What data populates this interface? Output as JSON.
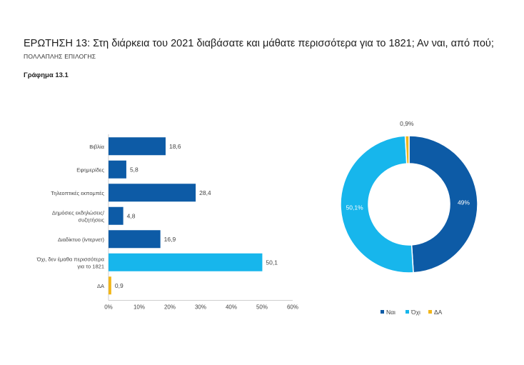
{
  "header": {
    "title": "ΕΡΩΤΗΣΗ 13: Στη διάρκεια του 2021 διαβάσατε και μάθατε περισσότερα για το 1821; Αν ναι, από πού;",
    "subtitle": "ΠΟΛΛΑΠΛΗΣ ΕΠΙΛΟΓΗΣ",
    "figure_label": "Γράφημα 13.1"
  },
  "colors": {
    "dark_blue": "#0d5ba6",
    "light_blue": "#17b6ec",
    "yellow": "#f2b619",
    "axis": "#cfcfcf",
    "text": "#444444"
  },
  "chart_data": [
    {
      "type": "bar",
      "orientation": "horizontal",
      "categories": [
        [
          "Βιβλία"
        ],
        [
          "Εφημερίδες"
        ],
        [
          "Τηλεοπτικές εκπομπές"
        ],
        [
          "Δημόσιες εκδηλώσεις/",
          "συζητήσεις"
        ],
        [
          "Διαδίκτυο (ίντερνετ)"
        ],
        [
          "Όχι, δεν έμαθα περισσότερα",
          "για το 1821"
        ],
        [
          "ΔΑ"
        ]
      ],
      "values": [
        18.6,
        5.8,
        28.4,
        4.8,
        16.9,
        50.1,
        0.9
      ],
      "value_labels": [
        "18,6",
        "5,8",
        "28,4",
        "4,8",
        "16,9",
        "50,1",
        "0,9"
      ],
      "bar_colors": [
        "dark_blue",
        "dark_blue",
        "dark_blue",
        "dark_blue",
        "dark_blue",
        "light_blue",
        "yellow"
      ],
      "xlim": [
        0,
        60
      ],
      "ticks": [
        0,
        10,
        20,
        30,
        40,
        50,
        60
      ],
      "tick_labels": [
        "0%",
        "10%",
        "20%",
        "30%",
        "40%",
        "50%",
        "60%"
      ],
      "grid": false
    },
    {
      "type": "pie",
      "donut": true,
      "labels": [
        "Ναι",
        "Όχι",
        "ΔΑ"
      ],
      "values": [
        49,
        50.1,
        0.9
      ],
      "value_labels": [
        "49%",
        "50,1%",
        "0,9%"
      ],
      "colors": [
        "dark_blue",
        "light_blue",
        "yellow"
      ],
      "legend_position": "bottom"
    }
  ]
}
